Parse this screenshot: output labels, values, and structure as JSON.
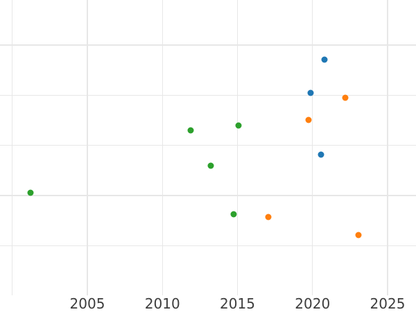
{
  "figure": {
    "background_color": "#ffffff",
    "grid_color": "#e7e7e7",
    "tick_label_color": "#3d3d3d"
  },
  "chart_data": {
    "type": "scatter",
    "title": "",
    "xlabel": "",
    "ylabel": "",
    "legend": "none",
    "grid": true,
    "x_tick_labels": [
      "2005",
      "2010",
      "2015",
      "2020",
      "2025"
    ],
    "x_tick_values": [
      2005,
      2010,
      2015,
      2020,
      2025
    ],
    "x_gridline_values": [
      2000,
      2005,
      2010,
      2015,
      2020,
      2025
    ],
    "x_visible_range": [
      1999.2,
      2026.9
    ],
    "y_tick_labels_visible": false,
    "y_gridline_values": [
      1,
      2,
      3,
      4,
      5
    ],
    "y_visible_range": [
      0,
      5.9
    ],
    "series": [
      {
        "name": "green",
        "color": "#2ca02c",
        "points": [
          {
            "x": 2001.2,
            "y": 2.06
          },
          {
            "x": 2011.9,
            "y": 3.3
          },
          {
            "x": 2013.2,
            "y": 2.59
          },
          {
            "x": 2014.75,
            "y": 1.63
          },
          {
            "x": 2015.05,
            "y": 3.39
          }
        ]
      },
      {
        "name": "orange",
        "color": "#ff7f0e",
        "points": [
          {
            "x": 2017.05,
            "y": 1.58
          },
          {
            "x": 2019.75,
            "y": 3.51
          },
          {
            "x": 2022.2,
            "y": 3.95
          },
          {
            "x": 2023.05,
            "y": 1.22
          }
        ]
      },
      {
        "name": "blue",
        "color": "#1f77b4",
        "points": [
          {
            "x": 2019.85,
            "y": 4.04
          },
          {
            "x": 2020.55,
            "y": 2.82
          },
          {
            "x": 2020.8,
            "y": 4.71
          }
        ]
      }
    ]
  }
}
